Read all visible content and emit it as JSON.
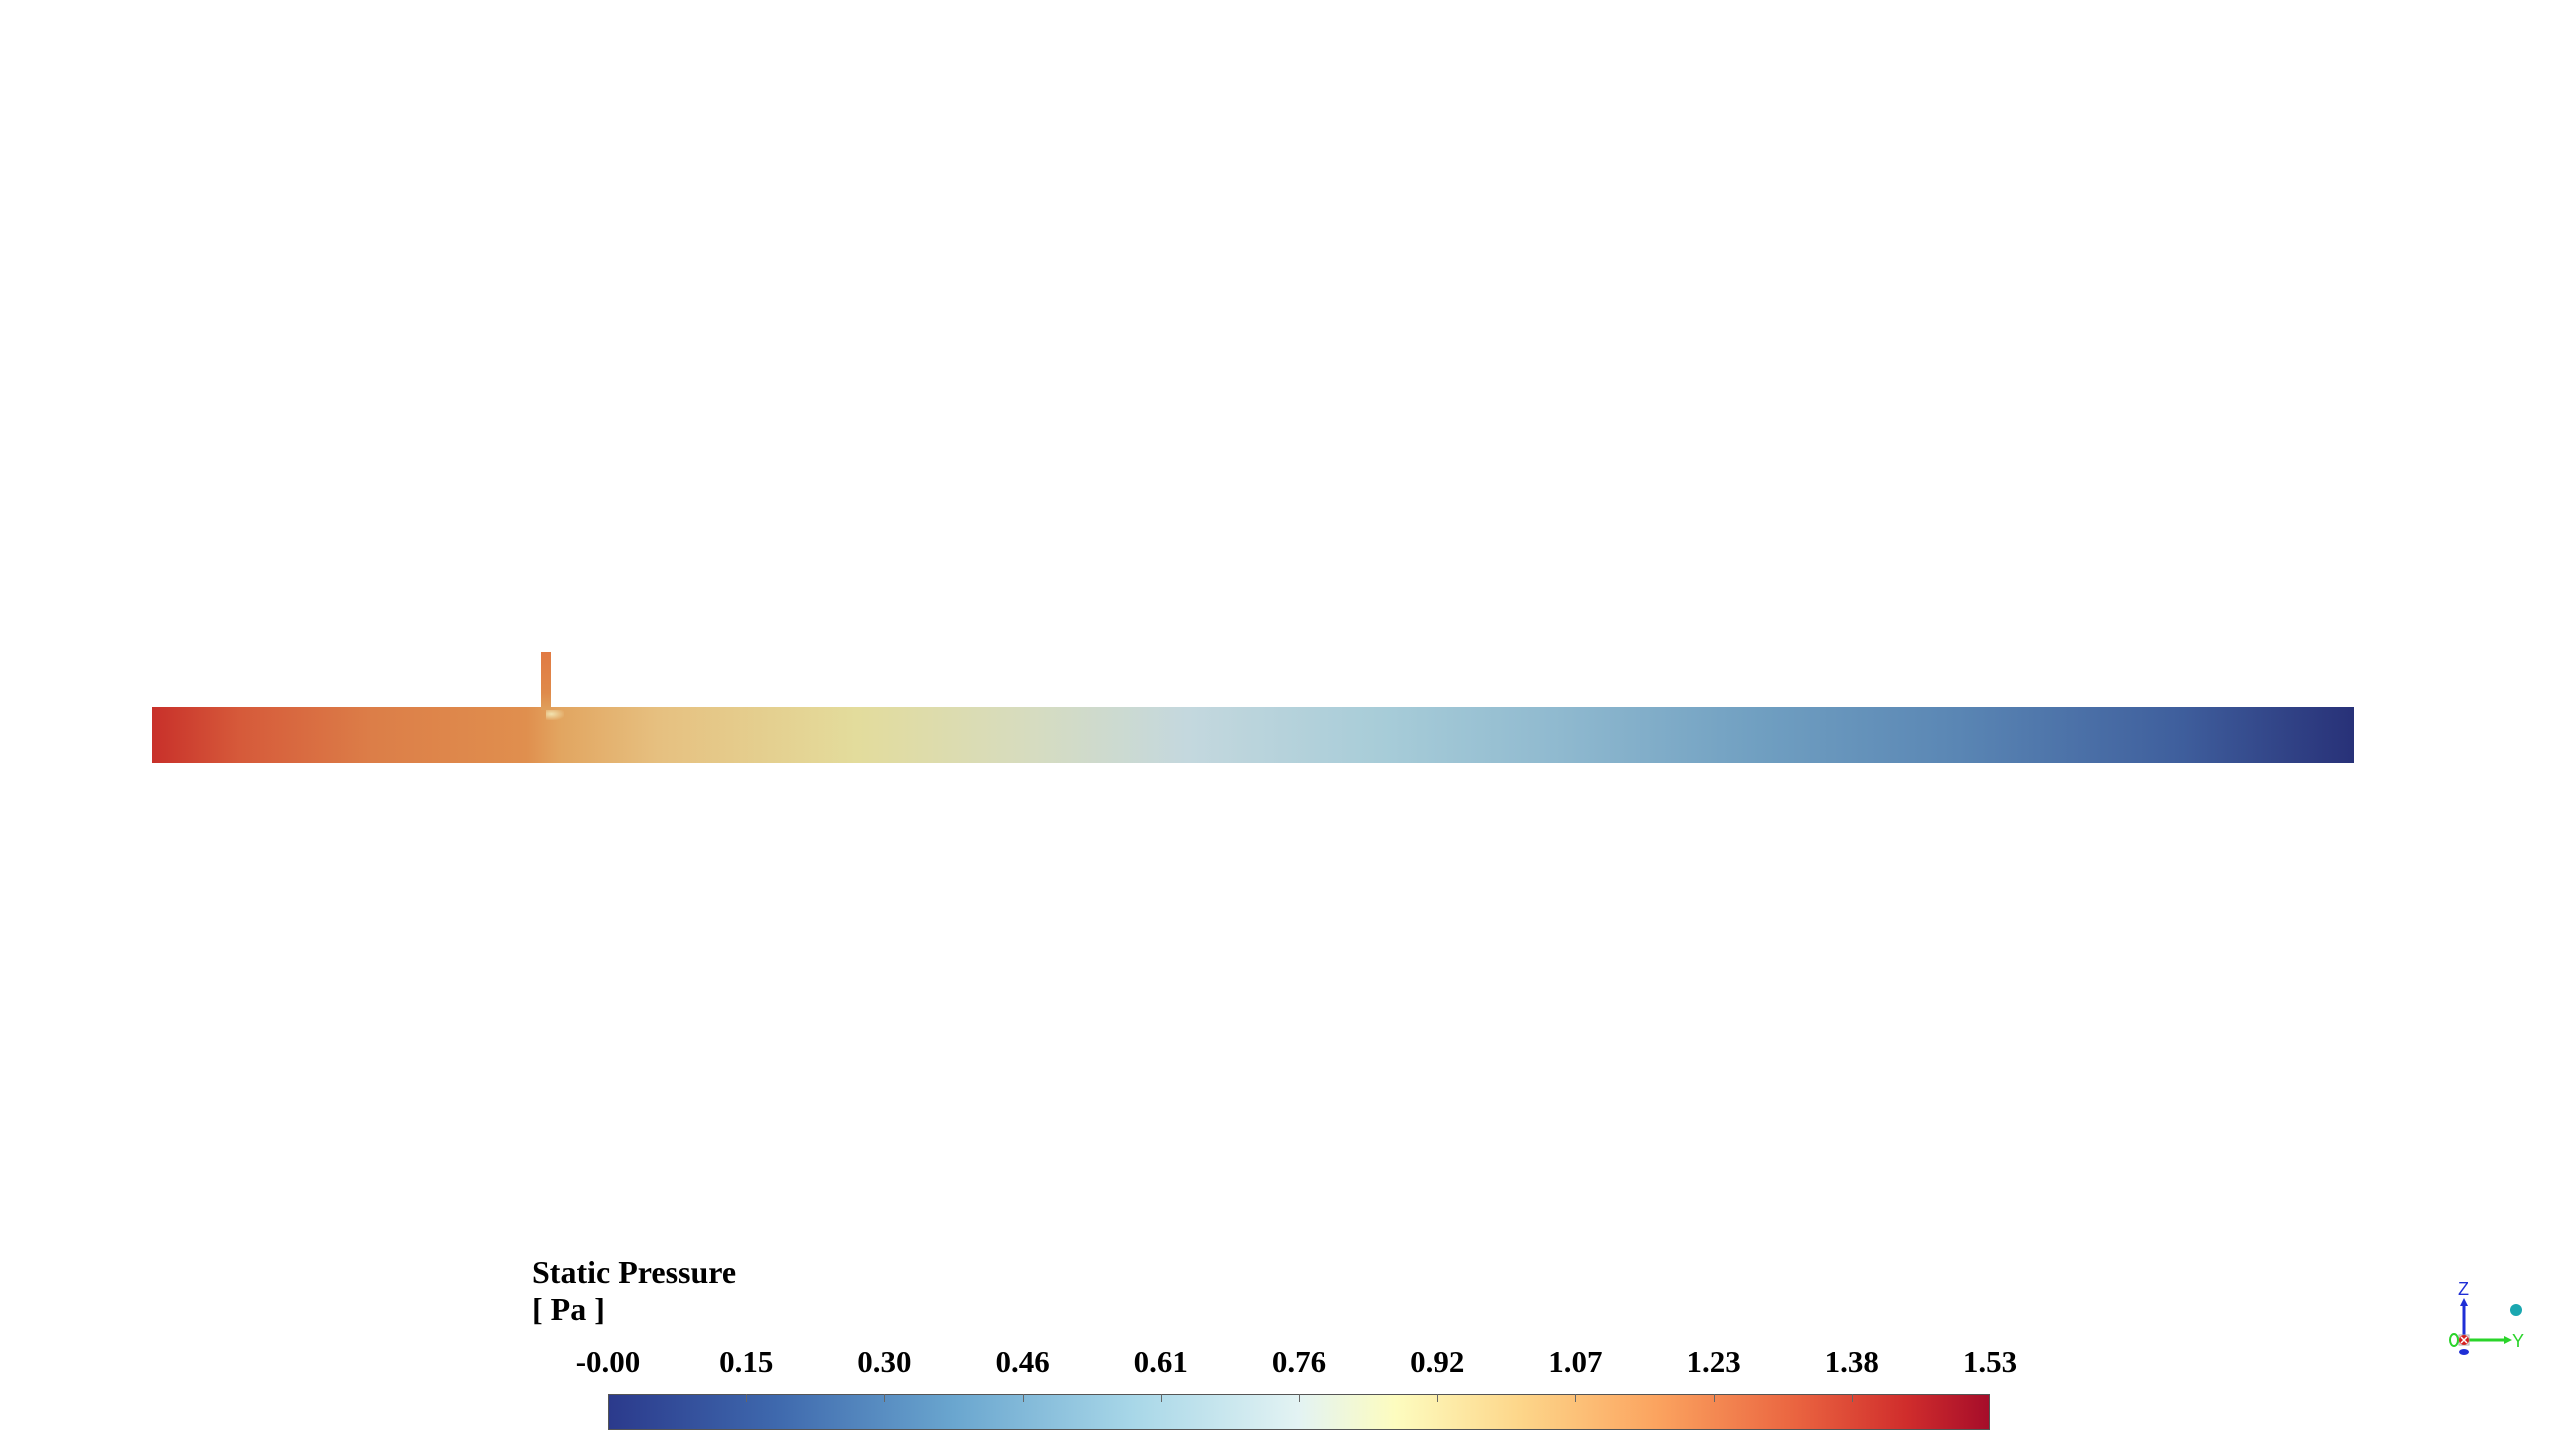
{
  "legend": {
    "title": "Static Pressure",
    "unit": "[ Pa ]",
    "ticks": [
      "-0.00",
      "0.15",
      "0.30",
      "0.46",
      "0.61",
      "0.76",
      "0.92",
      "1.07",
      "1.23",
      "1.38",
      "1.53"
    ],
    "range": [
      0.0,
      1.53
    ],
    "colormap": [
      "#2b3a8c",
      "#3e68ad",
      "#6aa6cf",
      "#a8d7e8",
      "#e3f3f3",
      "#fdfcbf",
      "#fdd68a",
      "#fba35f",
      "#ea6440",
      "#d02d2c",
      "#a60d2a"
    ]
  },
  "axes": {
    "z_label": "Z",
    "y_label": "Y",
    "z_color": "#1f2fd6",
    "y_color": "#2ad42a",
    "x_color": "#d62020",
    "sphere_color": "#1aa7b0"
  }
}
